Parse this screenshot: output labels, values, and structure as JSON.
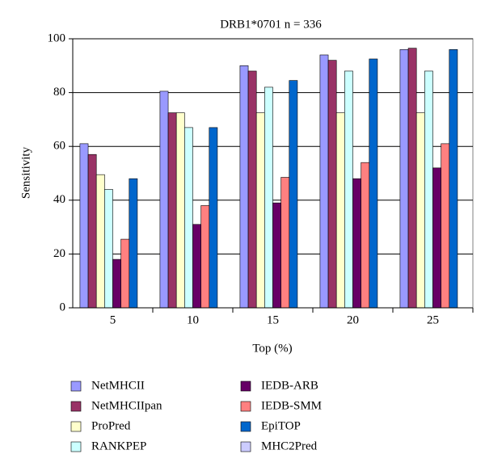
{
  "chart_data": {
    "type": "bar",
    "title": "DRB1*0701 n = 336",
    "x_label": "Top (%)",
    "y_label": "Sensitivity",
    "categories": [
      "5",
      "10",
      "15",
      "20",
      "25"
    ],
    "series": [
      {
        "name": "NetMHCII",
        "color": "#9999ff",
        "values": [
          61,
          80.5,
          90,
          94,
          96
        ]
      },
      {
        "name": "NetMHCIIpan",
        "color": "#993366",
        "values": [
          57,
          72.5,
          88,
          92,
          96.5
        ]
      },
      {
        "name": "ProPred",
        "color": "#ffffcc",
        "values": [
          49.5,
          72.5,
          72.5,
          72.5,
          72.5
        ]
      },
      {
        "name": "RANKPEP",
        "color": "#ccffff",
        "values": [
          44,
          67,
          82,
          88,
          88
        ]
      },
      {
        "name": "IEDB-ARB",
        "color": "#660066",
        "values": [
          18,
          31,
          39,
          48,
          52
        ]
      },
      {
        "name": "IEDB-SMM",
        "color": "#ff8080",
        "values": [
          25.5,
          38,
          48.5,
          54,
          61
        ]
      },
      {
        "name": "EpiTOP",
        "color": "#0066cc",
        "values": [
          48,
          67,
          84.5,
          92.5,
          96
        ]
      },
      {
        "name": "MHC2Pred",
        "color": "#ccccff",
        "values": [
          0,
          0,
          0,
          0,
          0
        ]
      }
    ],
    "ylim": [
      0,
      100
    ],
    "yticks": [
      0,
      20,
      40,
      60,
      80,
      100
    ],
    "grid": true
  }
}
